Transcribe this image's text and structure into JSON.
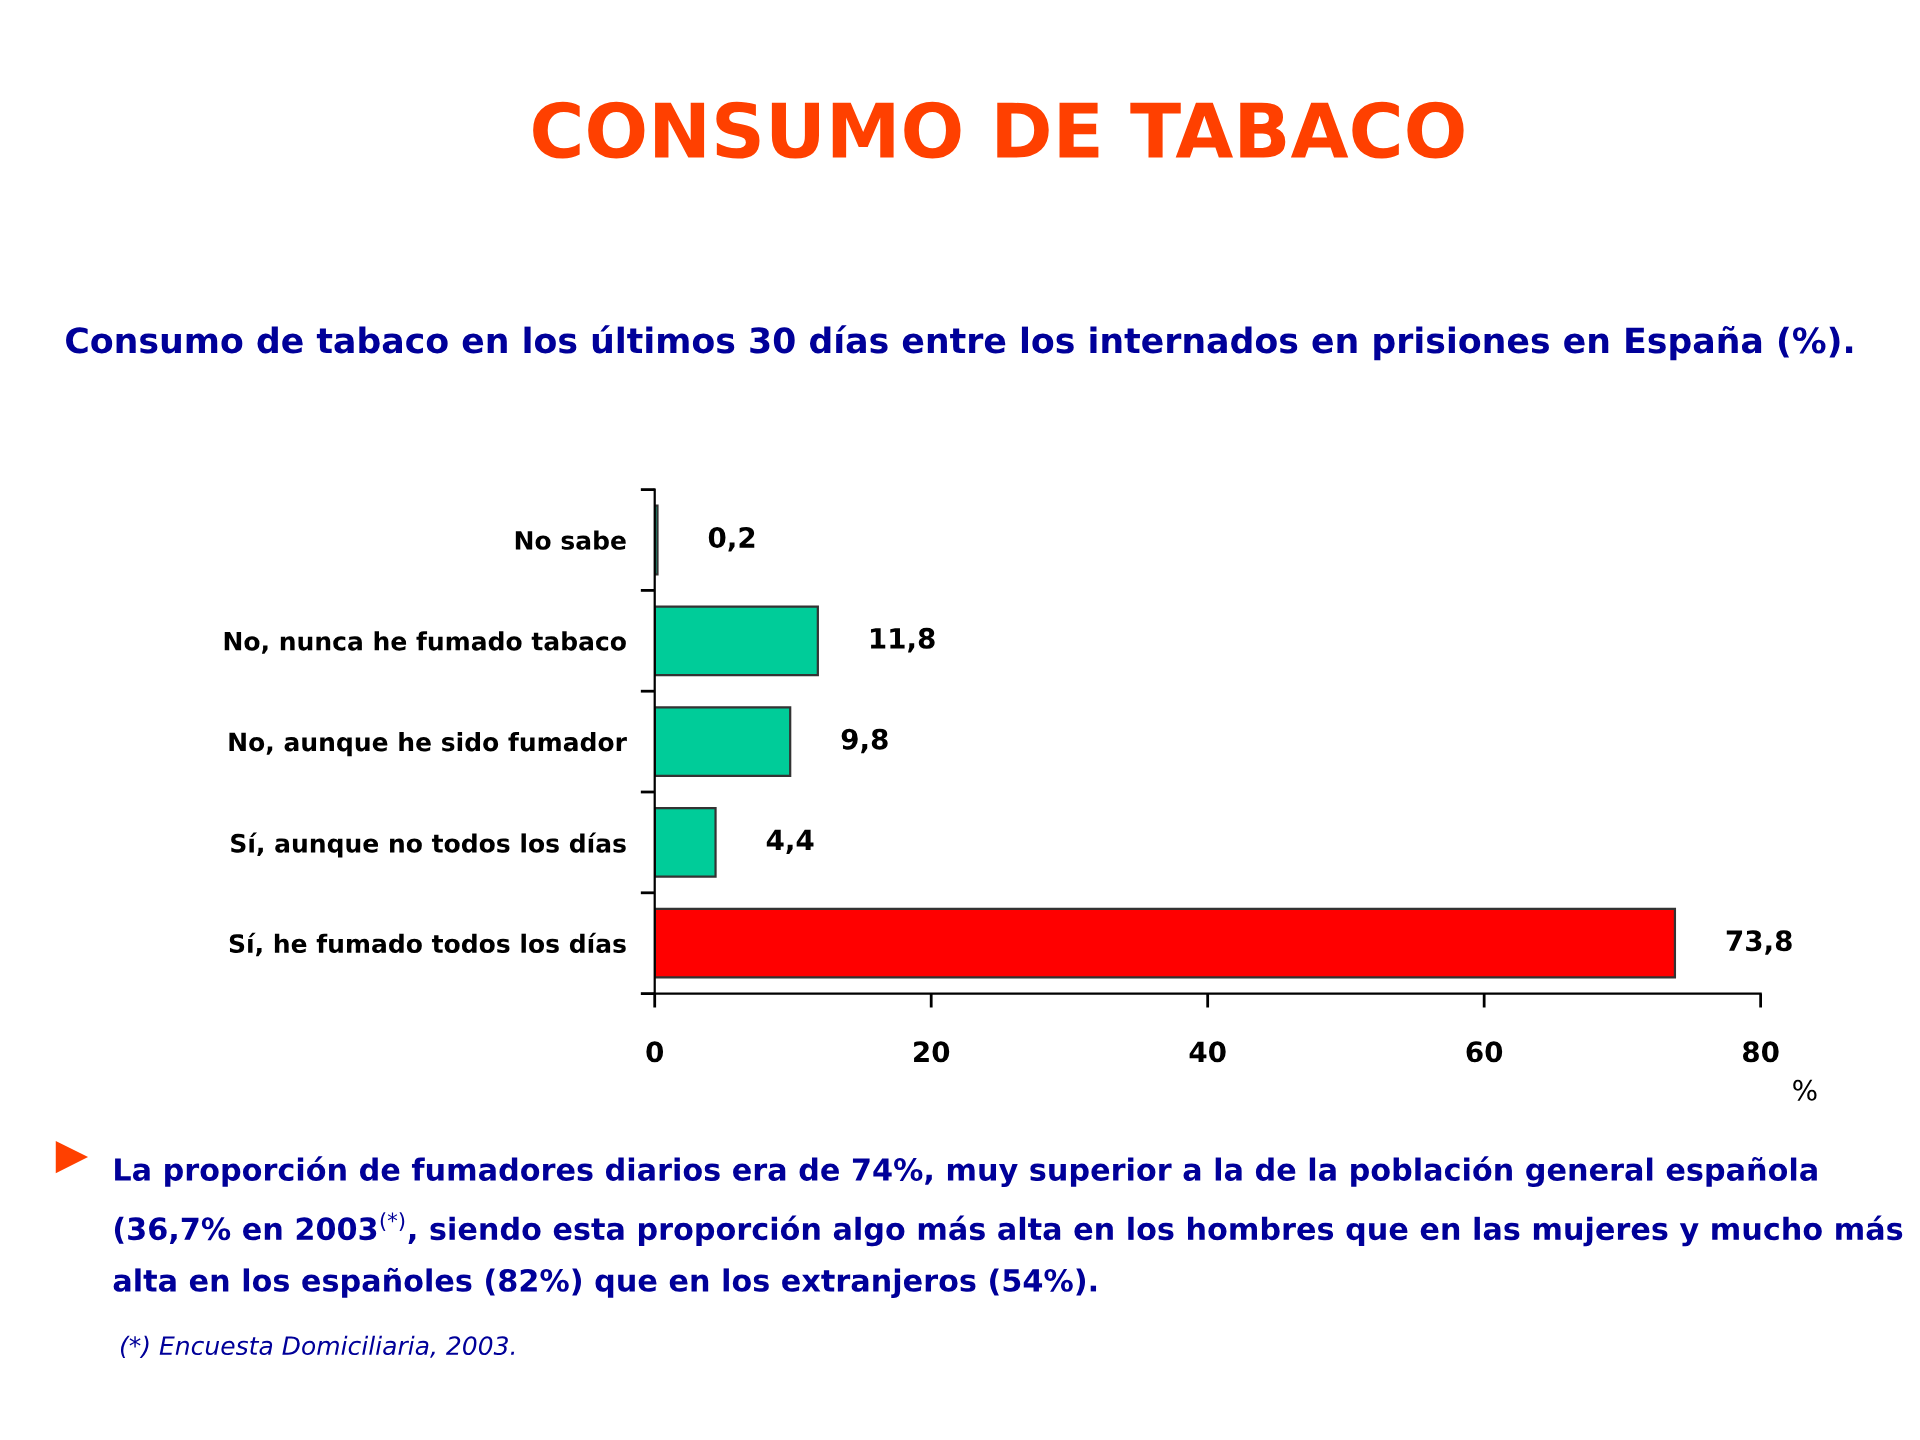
{
  "chart_data": {
    "type": "bar",
    "orientation": "horizontal",
    "title": "CONSUMO DE TABACO",
    "subtitle": "Consumo de tabaco en los últimos 30 días entre los internados en prisiones en España (%).",
    "xlabel": "%",
    "categories": [
      "No sabe",
      "No, nunca he fumado tabaco",
      "No, aunque he sido fumador",
      "Sí, aunque no todos los días",
      "Sí, he fumado todos los días"
    ],
    "values": [
      0.2,
      11.8,
      9.8,
      4.4,
      73.8
    ],
    "colors": [
      "#00cc99",
      "#00cc99",
      "#00cc99",
      "#00cc99",
      "#ff0000"
    ],
    "value_labels": [
      "0,2",
      "11,8",
      "9,8",
      "4,4",
      "73,8"
    ],
    "xlim": [
      0,
      80
    ],
    "xticks": [
      0,
      20,
      40,
      60,
      80
    ],
    "grid": false,
    "annotations": [
      "La proporción de fumadores diarios era de 74%, muy superior a la de la población general española (36,7% en 2003$^{(*)}$, siendo esta proporción algo más alta en los hombres que en las mujeres y mucho más alta en los españoles (82%) que en los extranjeros (54%).",
      "(*) Encuesta Domiciliaria, 2003."
    ]
  }
}
